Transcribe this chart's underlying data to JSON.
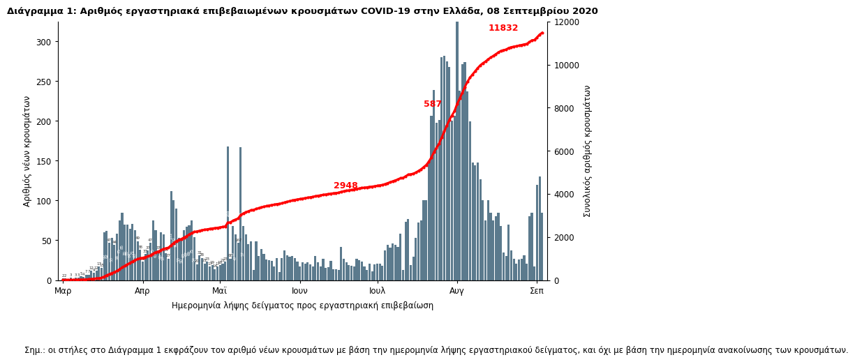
{
  "title": "Διάγραμμα 1: Αριθμός εργαστηριακά επιβεβαιωμένων κρουσμάτων COVID-19 στην Ελλάδα, 08 Σεπτεμβρίου 2020",
  "xlabel": "Ημερομηνία λήψης δείγματος προς εργαστηριακή επιβεβαίωση",
  "ylabel_left": "Αριθμός νέων κρουσμάτων",
  "ylabel_right": "Συνολικός αριθμός κρουσμάτων",
  "footnote": "Σημ.: οι στήλες στο Διάγραμμα 1 εκφράζουν τον αριθμό νέων κρουσμάτων με βάση την ημερομηνία λήψης εργαστηριακού δείγματος, και όχι με βάση την ημερομηνία ανακοίνωσης των κρουσμάτων.",
  "bar_color": "#5b7a8d",
  "line_color": "#ff0000",
  "annotation_color": "#ff0000",
  "background_color": "#ffffff",
  "ylim_left": [
    0,
    325
  ],
  "ylim_right": [
    0,
    12000
  ],
  "monthly_ticks": [
    "Μαρ",
    "Απρ",
    "Μαϊ",
    "Ιουν",
    "Ιουλ",
    "Αυγ",
    "Σεπ"
  ],
  "monthly_tick_positions": [
    0,
    31,
    61,
    92,
    122,
    153,
    184
  ],
  "daily_cases": [
    2,
    2,
    0,
    3,
    0,
    3,
    3,
    5,
    4,
    7,
    7,
    12,
    9,
    12,
    17,
    15,
    60,
    62,
    47,
    53,
    44,
    58,
    75,
    85,
    70,
    70,
    64,
    71,
    63,
    49,
    38,
    23,
    33,
    37,
    47,
    75,
    63,
    37,
    60,
    57,
    34,
    27,
    112,
    100,
    90,
    53,
    50,
    63,
    67,
    69,
    75,
    54,
    20,
    31,
    28,
    21,
    23,
    17,
    19,
    14,
    17,
    19,
    21,
    23,
    168,
    27,
    68,
    57,
    47,
    167,
    68,
    57,
    45,
    49,
    13,
    49,
    30,
    39,
    33,
    26,
    25,
    24,
    17,
    28,
    10,
    28,
    37,
    31,
    29,
    30,
    28,
    23,
    17,
    22,
    21,
    22,
    20,
    17,
    30,
    22,
    17,
    27,
    15,
    16,
    24,
    14,
    14,
    13,
    42,
    27,
    22,
    19,
    18,
    17,
    27,
    25,
    23,
    17,
    13,
    21,
    11,
    20,
    21,
    21,
    18,
    37,
    44,
    41,
    46,
    44,
    42,
    58,
    13,
    73,
    77,
    19,
    29,
    53,
    72,
    75,
    100,
    100,
    150,
    206,
    239,
    198,
    201,
    280,
    282,
    275,
    268,
    200,
    206,
    335,
    238,
    271,
    274,
    237,
    199,
    148,
    144,
    148,
    127,
    100,
    75,
    100,
    85,
    75,
    80,
    85,
    68,
    35,
    30,
    70,
    37,
    27,
    21,
    26,
    27,
    31,
    21,
    80,
    85,
    17,
    120,
    130,
    85
  ],
  "ann_2948_idx": 100,
  "ann_587_idx": 152,
  "note_fontsize": 8.5,
  "title_fontsize": 9.5,
  "axis_fontsize": 8.5,
  "tick_fontsize": 8.5
}
